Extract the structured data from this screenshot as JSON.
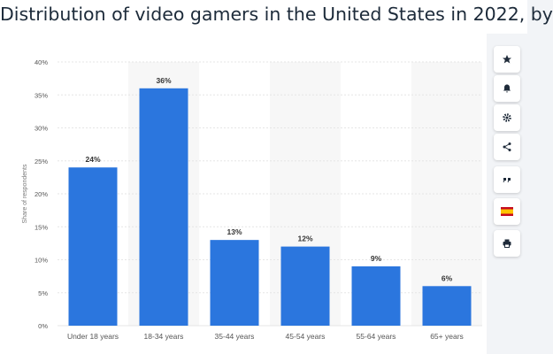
{
  "header": {
    "title": "Distribution of video gamers in the United States in 2022, by"
  },
  "toolbar": {
    "icons": [
      "star-icon",
      "bell-icon",
      "gear-icon",
      "share-icon",
      "quote-icon",
      "flag-icon",
      "print-icon"
    ]
  },
  "colors": {
    "bar": "#2b76de",
    "axis_text": "#555555",
    "label_text": "#333333",
    "grid": "#e6e6e6",
    "band": "#f7f7f7"
  },
  "chart_data": {
    "type": "bar",
    "categories": [
      "Under 18 years",
      "18-34 years",
      "35-44 years",
      "45-54 years",
      "55-64 years",
      "65+ years"
    ],
    "values": [
      24,
      36,
      13,
      12,
      9,
      6
    ],
    "data_labels": [
      "24%",
      "36%",
      "13%",
      "12%",
      "9%",
      "6%"
    ],
    "ylabel": "Share of respondents",
    "xlabel": "",
    "ylim": [
      0,
      40
    ],
    "yticks": [
      0,
      5,
      10,
      15,
      20,
      25,
      30,
      35,
      40
    ],
    "ytick_labels": [
      "0%",
      "5%",
      "10%",
      "15%",
      "20%",
      "25%",
      "30%",
      "35%",
      "40%"
    ],
    "grid": true
  }
}
